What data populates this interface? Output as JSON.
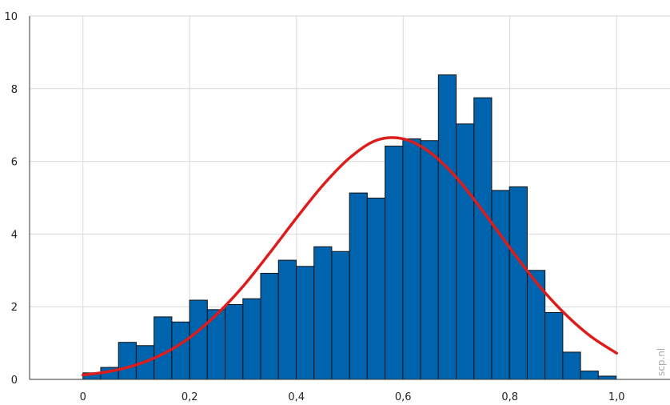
{
  "chart_data": {
    "type": "bar",
    "xlim": [
      -0.1,
      1.1
    ],
    "ylim": [
      0,
      10
    ],
    "grid": true,
    "x_ticks": [
      0,
      0.2,
      0.4,
      0.6,
      0.8,
      1.0
    ],
    "x_tick_labels": [
      "0",
      "0,2",
      "0,4",
      "0,6",
      "0,8",
      "1,0"
    ],
    "y_ticks": [
      0,
      2,
      4,
      6,
      8,
      10
    ],
    "y_tick_labels": [
      "0",
      "2",
      "4",
      "6",
      "8",
      "10"
    ],
    "bin_width": 0.0333,
    "bins_start": 0,
    "values": [
      0.18,
      0.33,
      1.02,
      0.93,
      1.72,
      1.58,
      2.18,
      1.92,
      2.06,
      2.22,
      2.92,
      3.28,
      3.11,
      3.65,
      3.52,
      5.13,
      4.99,
      6.42,
      6.62,
      6.57,
      8.38,
      7.03,
      7.75,
      5.2,
      5.3,
      3.0,
      1.84,
      0.75,
      0.23,
      0.09
    ],
    "bar_color": "#0063ad",
    "curve": {
      "color": "#dd1c1c",
      "x": [
        0,
        0.05,
        0.1,
        0.15,
        0.2,
        0.25,
        0.3,
        0.35,
        0.4,
        0.45,
        0.5,
        0.55,
        0.6,
        0.65,
        0.7,
        0.75,
        0.8,
        0.85,
        0.9,
        0.95,
        1.0
      ],
      "y": [
        0.12,
        0.22,
        0.4,
        0.7,
        1.15,
        1.78,
        2.56,
        3.48,
        4.44,
        5.35,
        6.1,
        6.58,
        6.62,
        6.25,
        5.55,
        4.62,
        3.62,
        2.66,
        1.85,
        1.2,
        0.72
      ]
    }
  },
  "watermark": "scp.nl"
}
